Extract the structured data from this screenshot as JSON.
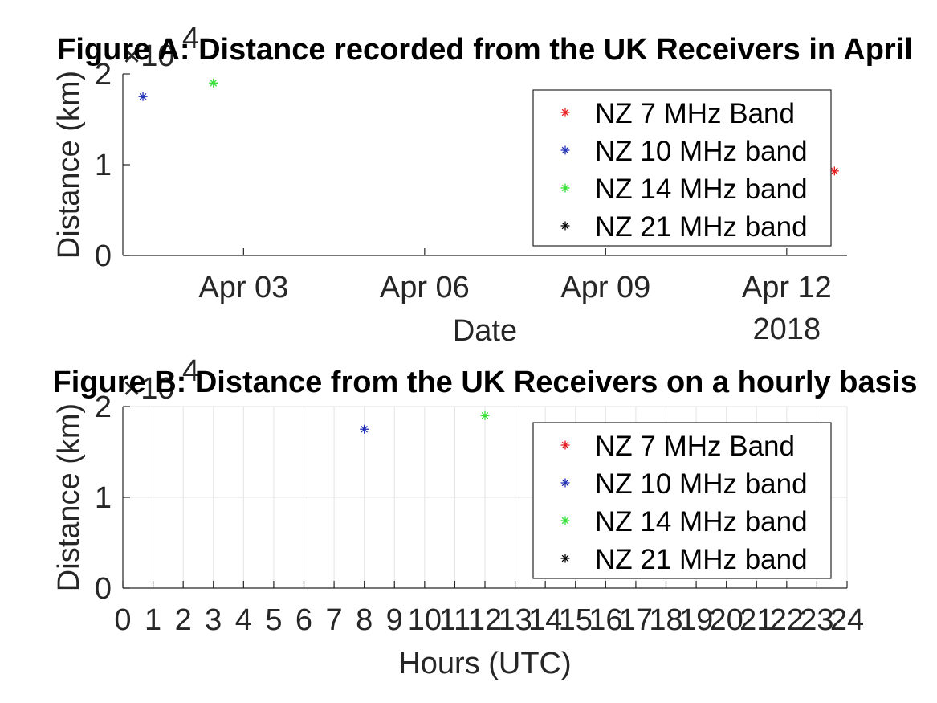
{
  "chart_data": [
    {
      "type": "scatter",
      "title": "Figure A: Distance recorded from the UK Receivers in April",
      "xlabel": "Date",
      "ylabel": "Distance (km)",
      "y_exponent_label": "×10",
      "y_exponent_power": "4",
      "x_axis_type": "date",
      "xlim": [
        "2018-04-01T00:00",
        "2018-04-13T00:00"
      ],
      "x_ticks": [
        "2018-04-03",
        "2018-04-06",
        "2018-04-09",
        "2018-04-12"
      ],
      "x_tick_labels": [
        "Apr 03",
        "Apr 06",
        "Apr 09",
        "Apr 12"
      ],
      "x_secondary_label": "2018",
      "ylim": [
        0,
        20000
      ],
      "y_ticks": [
        0,
        10000,
        20000
      ],
      "y_tick_labels": [
        "0",
        "1",
        "2"
      ],
      "grid": false,
      "legend_position": "top-right",
      "series": [
        {
          "name": "NZ 7 MHz Band",
          "color": "#e41a1c",
          "marker": "*",
          "points": [
            {
              "x": "2018-04-12T19:00",
              "y": 9300
            }
          ]
        },
        {
          "name": "NZ 10 MHz band",
          "color": "#1f2fb5",
          "marker": "*",
          "points": [
            {
              "x": "2018-04-01T08:00",
              "y": 17500
            }
          ]
        },
        {
          "name": "NZ 14 MHz band",
          "color": "#33e033",
          "marker": "*",
          "points": [
            {
              "x": "2018-04-02T12:00",
              "y": 19000
            }
          ]
        },
        {
          "name": "NZ 21 MHz band",
          "color": "#000000",
          "marker": "*",
          "points": []
        }
      ]
    },
    {
      "type": "scatter",
      "title": "Figure B: Distance from the UK Receivers on a hourly basis",
      "xlabel": "Hours (UTC)",
      "ylabel": "Distance (km)",
      "y_exponent_label": "×10",
      "y_exponent_power": "4",
      "x_axis_type": "linear",
      "xlim": [
        0,
        24
      ],
      "x_ticks": [
        0,
        1,
        2,
        3,
        4,
        5,
        6,
        7,
        8,
        9,
        10,
        11,
        12,
        13,
        14,
        15,
        16,
        17,
        18,
        19,
        20,
        21,
        22,
        23,
        24
      ],
      "x_tick_labels": [
        "0",
        "1",
        "2",
        "3",
        "4",
        "5",
        "6",
        "7",
        "8",
        "9",
        "10",
        "11",
        "12",
        "13",
        "14",
        "15",
        "16",
        "17",
        "18",
        "19",
        "20",
        "21",
        "22",
        "23",
        "24"
      ],
      "ylim": [
        0,
        20000
      ],
      "y_ticks": [
        0,
        10000,
        20000
      ],
      "y_tick_labels": [
        "0",
        "1",
        "2"
      ],
      "grid": true,
      "legend_position": "top-right",
      "series": [
        {
          "name": "NZ 7 MHz Band",
          "color": "#e41a1c",
          "marker": "*",
          "points": []
        },
        {
          "name": "NZ 10 MHz band",
          "color": "#1f2fb5",
          "marker": "*",
          "points": [
            {
              "x": 8,
              "y": 17500
            }
          ]
        },
        {
          "name": "NZ 14 MHz band",
          "color": "#33e033",
          "marker": "*",
          "points": [
            {
              "x": 12,
              "y": 19000
            }
          ]
        },
        {
          "name": "NZ 21 MHz band",
          "color": "#000000",
          "marker": "*",
          "points": []
        }
      ]
    }
  ]
}
